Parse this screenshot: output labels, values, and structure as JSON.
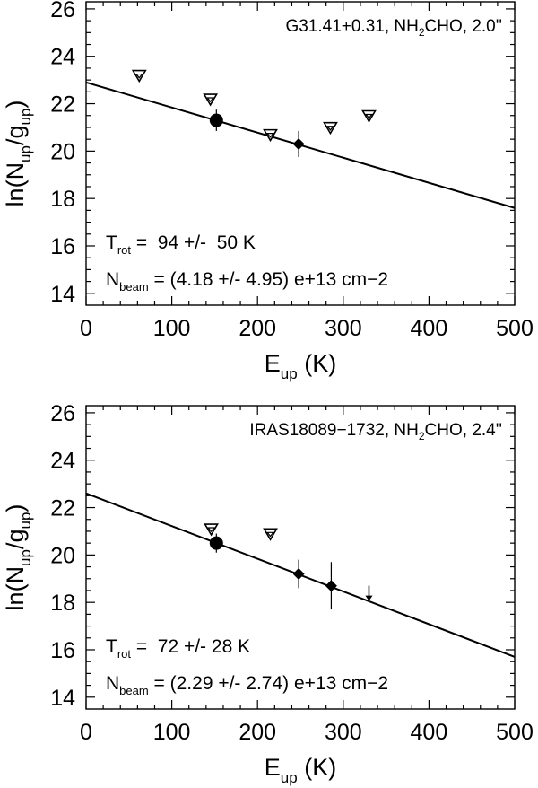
{
  "chart_data": [
    {
      "type": "scatter",
      "title": "G31.41+0.31, NH₂CHO, 2.0''",
      "title_parts": [
        "G31.41+0.31, NH",
        "2",
        "CHO, 2.0''"
      ],
      "xlabel": "E_up (K)",
      "xlabel_parts": [
        "E",
        "up",
        " (K)"
      ],
      "ylabel": "ln(N_up/g_up)",
      "ylabel_parts": [
        "ln(N",
        "up",
        "/g",
        "up",
        ")"
      ],
      "xlim": [
        0,
        500
      ],
      "ylim": [
        13.5,
        26.3
      ],
      "xticks": [
        0,
        100,
        200,
        300,
        400,
        500
      ],
      "yticks": [
        14,
        16,
        18,
        20,
        22,
        24,
        26
      ],
      "fit_line": {
        "x": [
          0,
          500
        ],
        "y": [
          22.9,
          17.6
        ]
      },
      "series": [
        {
          "marker": "triangle",
          "points": [
            {
              "x": 62,
              "y": 23.2
            },
            {
              "x": 145,
              "y": 22.2
            },
            {
              "x": 215,
              "y": 20.7
            },
            {
              "x": 285,
              "y": 21.0
            },
            {
              "x": 330,
              "y": 21.5
            }
          ]
        },
        {
          "marker": "circle",
          "points": [
            {
              "x": 152,
              "y": 21.3,
              "err": 0.45
            }
          ]
        },
        {
          "marker": "diamond",
          "points": [
            {
              "x": 248,
              "y": 20.3,
              "err": 0.55
            }
          ]
        }
      ],
      "annotations": {
        "trot": {
          "parts": [
            "T",
            "rot",
            " =  94 +/-  50 K"
          ]
        },
        "nbeam": {
          "parts": [
            "N",
            "beam",
            " = (4.18 +/- 4.95) e+13 cm−2"
          ]
        }
      }
    },
    {
      "type": "scatter",
      "title": "IRAS18089−1732, NH₂CHO, 2.4''",
      "title_parts": [
        "IRAS18089−1732, NH",
        "2",
        "CHO, 2.4''"
      ],
      "xlabel": "E_up (K)",
      "xlabel_parts": [
        "E",
        "up",
        " (K)"
      ],
      "ylabel": "ln(N_up/g_up)",
      "ylabel_parts": [
        "ln(N",
        "up",
        "/g",
        "up",
        ")"
      ],
      "xlim": [
        0,
        500
      ],
      "ylim": [
        13.5,
        26.3
      ],
      "xticks": [
        0,
        100,
        200,
        300,
        400,
        500
      ],
      "yticks": [
        14,
        16,
        18,
        20,
        22,
        24,
        26
      ],
      "fit_line": {
        "x": [
          0,
          500
        ],
        "y": [
          22.6,
          15.7
        ]
      },
      "series": [
        {
          "marker": "triangle",
          "points": [
            {
              "x": 146,
              "y": 21.1
            },
            {
              "x": 215,
              "y": 20.9
            }
          ]
        },
        {
          "marker": "circle",
          "points": [
            {
              "x": 152,
              "y": 20.5,
              "err": 0.4
            }
          ]
        },
        {
          "marker": "diamond",
          "points": [
            {
              "x": 248,
              "y": 19.2,
              "err": 0.6
            },
            {
              "x": 286,
              "y": 18.7,
              "err": 1.0
            }
          ]
        },
        {
          "marker": "upper-limit",
          "points": [
            {
              "x": 330,
              "y": 18.4
            }
          ]
        }
      ],
      "annotations": {
        "trot": {
          "parts": [
            "T",
            "rot",
            " =  72 +/- 28 K"
          ]
        },
        "nbeam": {
          "parts": [
            "N",
            "beam",
            " = (2.29 +/- 2.74) e+13 cm−2"
          ]
        }
      }
    }
  ]
}
